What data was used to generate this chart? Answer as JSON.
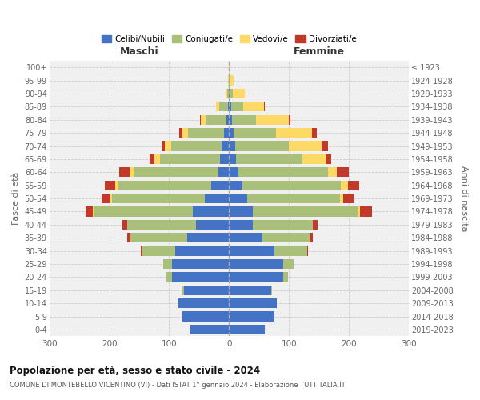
{
  "age_groups": [
    "0-4",
    "5-9",
    "10-14",
    "15-19",
    "20-24",
    "25-29",
    "30-34",
    "35-39",
    "40-44",
    "45-49",
    "50-54",
    "55-59",
    "60-64",
    "65-69",
    "70-74",
    "75-79",
    "80-84",
    "85-89",
    "90-94",
    "95-99",
    "100+"
  ],
  "birth_years": [
    "2019-2023",
    "2014-2018",
    "2009-2013",
    "2004-2008",
    "1999-2003",
    "1994-1998",
    "1989-1993",
    "1984-1988",
    "1979-1983",
    "1974-1978",
    "1969-1973",
    "1964-1968",
    "1959-1963",
    "1954-1958",
    "1949-1953",
    "1944-1948",
    "1939-1943",
    "1934-1938",
    "1929-1933",
    "1924-1928",
    "≤ 1923"
  ],
  "maschi": {
    "celibi": [
      65,
      78,
      85,
      75,
      95,
      95,
      90,
      70,
      55,
      60,
      40,
      30,
      18,
      15,
      12,
      8,
      4,
      2,
      0,
      0,
      0
    ],
    "coniugati": [
      0,
      0,
      0,
      3,
      10,
      15,
      55,
      95,
      115,
      165,
      155,
      155,
      140,
      100,
      85,
      60,
      35,
      15,
      3,
      1,
      0
    ],
    "vedovi": [
      0,
      0,
      0,
      0,
      0,
      0,
      0,
      0,
      0,
      2,
      3,
      5,
      8,
      10,
      10,
      10,
      8,
      5,
      3,
      1,
      0
    ],
    "divorziati": [
      0,
      0,
      0,
      0,
      0,
      0,
      2,
      5,
      8,
      12,
      15,
      18,
      18,
      8,
      5,
      5,
      2,
      0,
      0,
      0,
      0
    ]
  },
  "femmine": {
    "nubili": [
      60,
      75,
      80,
      70,
      90,
      90,
      75,
      55,
      40,
      40,
      30,
      22,
      15,
      12,
      10,
      8,
      5,
      3,
      1,
      0,
      0
    ],
    "coniugate": [
      0,
      0,
      0,
      2,
      8,
      18,
      55,
      80,
      100,
      175,
      155,
      165,
      150,
      110,
      90,
      70,
      40,
      20,
      5,
      2,
      0
    ],
    "vedove": [
      0,
      0,
      0,
      0,
      0,
      0,
      0,
      0,
      0,
      3,
      5,
      12,
      15,
      40,
      55,
      60,
      55,
      35,
      20,
      5,
      1
    ],
    "divorziate": [
      0,
      0,
      0,
      0,
      0,
      0,
      2,
      5,
      8,
      20,
      18,
      18,
      20,
      8,
      10,
      8,
      3,
      2,
      0,
      0,
      0
    ]
  },
  "colors": {
    "celibi_nubili": "#4472C4",
    "coniugati": "#AABF7A",
    "vedovi": "#FFD966",
    "divorziati": "#C0392B"
  },
  "title": "Popolazione per età, sesso e stato civile - 2024",
  "subtitle": "COMUNE DI MONTEBELLO VICENTINO (VI) - Dati ISTAT 1° gennaio 2024 - Elaborazione TUTTITALIA.IT",
  "xlabel_left": "Maschi",
  "xlabel_right": "Femmine",
  "ylabel_left": "Fasce di età",
  "ylabel_right": "Anni di nascita",
  "xlim": 300,
  "bg_color": "#FFFFFF",
  "plot_bg": "#F0F0F0",
  "grid_color": "#CCCCCC",
  "legend_labels": [
    "Celibi/Nubili",
    "Coniugati/e",
    "Vedovi/e",
    "Divorziati/e"
  ]
}
